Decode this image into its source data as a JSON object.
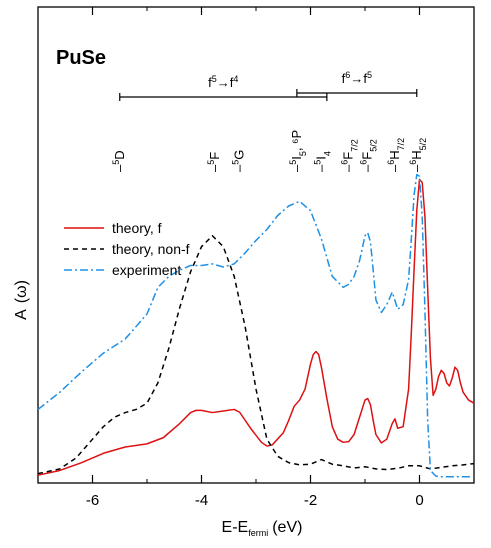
{
  "chart_data": {
    "type": "line",
    "title": "PuSe",
    "xlabel_main": "E-E",
    "xlabel_sub": "fermi",
    "xlabel_unit": "(eV)",
    "ylabel_main": "A",
    "ylabel_sym": "(ω)",
    "xlim": [
      -7,
      1
    ],
    "ylim": [
      0,
      1
    ],
    "y_ticks_shown": false,
    "x_ticks": [
      -6,
      -4,
      -2,
      0
    ],
    "x_ticklabels": [
      "-6",
      "-4",
      "-2",
      "0"
    ],
    "legend": {
      "placement": "middle-left",
      "entries": [
        {
          "label": "theory, f",
          "color": "#dd1111",
          "style": "solid"
        },
        {
          "label": "theory, non-f",
          "color": "#000000",
          "style": "dashed"
        },
        {
          "label": "experiment",
          "color": "#1e90e6",
          "style": "dashdot"
        }
      ]
    },
    "series": [
      {
        "name": "theory, f",
        "color": "#dd1111",
        "x": [
          -7.0,
          -6.6,
          -6.2,
          -5.8,
          -5.4,
          -5.0,
          -4.7,
          -4.4,
          -4.2,
          -4.1,
          -4.0,
          -3.8,
          -3.6,
          -3.4,
          -3.3,
          -3.1,
          -2.9,
          -2.8,
          -2.7,
          -2.5,
          -2.4,
          -2.3,
          -2.2,
          -2.1,
          -2.0,
          -1.95,
          -1.9,
          -1.85,
          -1.8,
          -1.7,
          -1.6,
          -1.5,
          -1.4,
          -1.3,
          -1.2,
          -1.1,
          -1.0,
          -0.95,
          -0.9,
          -0.85,
          -0.8,
          -0.7,
          -0.6,
          -0.5,
          -0.45,
          -0.4,
          -0.3,
          -0.2,
          -0.15,
          -0.1,
          -0.05,
          0.0,
          0.05,
          0.1,
          0.15,
          0.2,
          0.25,
          0.3,
          0.35,
          0.4,
          0.45,
          0.5,
          0.55,
          0.6,
          0.65,
          0.7,
          0.75,
          0.8,
          0.9,
          1.0
        ],
        "y": [
          0.025,
          0.04,
          0.065,
          0.095,
          0.115,
          0.125,
          0.145,
          0.19,
          0.225,
          0.232,
          0.232,
          0.225,
          0.23,
          0.235,
          0.226,
          0.175,
          0.13,
          0.118,
          0.122,
          0.16,
          0.2,
          0.245,
          0.265,
          0.3,
          0.38,
          0.41,
          0.42,
          0.41,
          0.37,
          0.27,
          0.18,
          0.14,
          0.13,
          0.132,
          0.155,
          0.21,
          0.265,
          0.27,
          0.25,
          0.2,
          0.155,
          0.128,
          0.14,
          0.19,
          0.205,
          0.175,
          0.18,
          0.3,
          0.48,
          0.68,
          0.87,
          0.97,
          0.96,
          0.85,
          0.62,
          0.4,
          0.28,
          0.3,
          0.34,
          0.36,
          0.35,
          0.32,
          0.31,
          0.335,
          0.37,
          0.36,
          0.32,
          0.29,
          0.265,
          0.255
        ]
      },
      {
        "name": "theory, non-f",
        "color": "#000000",
        "x": [
          -7.0,
          -6.6,
          -6.3,
          -6.0,
          -5.8,
          -5.6,
          -5.4,
          -5.2,
          -5.0,
          -4.8,
          -4.6,
          -4.4,
          -4.2,
          -4.0,
          -3.8,
          -3.6,
          -3.4,
          -3.2,
          -3.0,
          -2.8,
          -2.6,
          -2.4,
          -2.2,
          -2.0,
          -1.8,
          -1.6,
          -1.4,
          -1.2,
          -1.0,
          -0.8,
          -0.6,
          -0.4,
          -0.2,
          0.0,
          0.2,
          0.4,
          0.6,
          0.8,
          1.0
        ],
        "y": [
          0.03,
          0.045,
          0.08,
          0.14,
          0.18,
          0.21,
          0.225,
          0.235,
          0.255,
          0.32,
          0.43,
          0.56,
          0.675,
          0.755,
          0.79,
          0.755,
          0.66,
          0.5,
          0.3,
          0.14,
          0.085,
          0.065,
          0.058,
          0.06,
          0.075,
          0.06,
          0.055,
          0.048,
          0.052,
          0.045,
          0.043,
          0.047,
          0.055,
          0.055,
          0.045,
          0.05,
          0.055,
          0.058,
          0.062
        ]
      },
      {
        "name": "experiment",
        "color": "#1e90e6",
        "x": [
          -7.0,
          -6.6,
          -6.2,
          -5.8,
          -5.4,
          -5.0,
          -4.8,
          -4.6,
          -4.4,
          -4.2,
          -4.0,
          -3.8,
          -3.6,
          -3.4,
          -3.2,
          -3.0,
          -2.8,
          -2.6,
          -2.4,
          -2.2,
          -2.0,
          -1.8,
          -1.6,
          -1.4,
          -1.3,
          -1.2,
          -1.1,
          -1.0,
          -0.95,
          -0.9,
          -0.85,
          -0.8,
          -0.7,
          -0.6,
          -0.5,
          -0.4,
          -0.3,
          -0.2,
          -0.15,
          -0.1,
          -0.05,
          0.0,
          0.05,
          0.1,
          0.15,
          0.2,
          0.3,
          0.4,
          0.6,
          0.8,
          1.0
        ],
        "y": [
          0.235,
          0.29,
          0.355,
          0.415,
          0.46,
          0.54,
          0.625,
          0.66,
          0.68,
          0.695,
          0.695,
          0.7,
          0.69,
          0.7,
          0.735,
          0.775,
          0.81,
          0.855,
          0.885,
          0.9,
          0.87,
          0.78,
          0.66,
          0.625,
          0.635,
          0.66,
          0.71,
          0.79,
          0.8,
          0.77,
          0.68,
          0.585,
          0.545,
          0.57,
          0.61,
          0.555,
          0.57,
          0.65,
          0.78,
          0.92,
          0.985,
          0.98,
          0.85,
          0.55,
          0.2,
          0.04,
          0.022,
          0.02,
          0.02,
          0.02,
          0.02
        ]
      }
    ],
    "transition_bars": [
      {
        "label_from": "f",
        "sup_from": "5",
        "label_to": "f",
        "sup_to": "4",
        "x_start": -5.5,
        "x_end": -1.7
      },
      {
        "label_from": "f",
        "sup_from": "6",
        "label_to": "f",
        "sup_to": "5",
        "x_start": -2.25,
        "x_end": -0.05
      }
    ],
    "state_labels": [
      {
        "x": -5.5,
        "main": "D",
        "sub": "",
        "sup_pre": "5",
        "extra": ""
      },
      {
        "x": -3.75,
        "main": "F",
        "sub": "",
        "sup_pre": "5",
        "extra": ""
      },
      {
        "x": -3.3,
        "main": "G",
        "sub": "",
        "sup_pre": "5",
        "extra": ""
      },
      {
        "x": -2.25,
        "main": "I",
        "sub": "5",
        "sup_pre": "5",
        "extra": ", ⁶P"
      },
      {
        "x": -1.8,
        "main": "I",
        "sub": "4",
        "sup_pre": "5",
        "extra": ""
      },
      {
        "x": -1.3,
        "main": "F",
        "sub": "7/2",
        "sup_pre": "6",
        "extra": ""
      },
      {
        "x": -0.95,
        "main": "F",
        "sub": "5/2",
        "sup_pre": "6",
        "extra": ""
      },
      {
        "x": -0.45,
        "main": "H",
        "sub": "7/2",
        "sup_pre": "6",
        "extra": ""
      },
      {
        "x": -0.05,
        "main": "H",
        "sub": "5/2",
        "sup_pre": "6",
        "extra": ""
      }
    ]
  }
}
